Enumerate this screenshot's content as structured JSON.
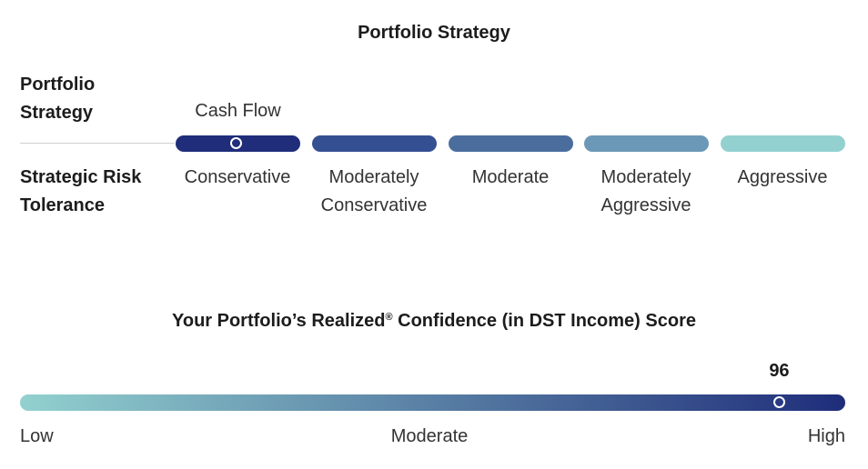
{
  "strategy_section": {
    "title": "Portfolio Strategy",
    "row_label_line1": "Portfolio",
    "row_label_line2": "Strategy",
    "selected_strategy": "Cash Flow",
    "risk_label_line1": "Strategic Risk",
    "risk_label_line2": "Tolerance",
    "segments": [
      {
        "line1": "Conservative",
        "line2": "",
        "color": "#1f2d7a"
      },
      {
        "line1": "Moderately",
        "line2": "Conservative",
        "color": "#354f93"
      },
      {
        "line1": "Moderate",
        "line2": "",
        "color": "#4a6d9e"
      },
      {
        "line1": "Moderately",
        "line2": "Aggressive",
        "color": "#6b98b6"
      },
      {
        "line1": "Aggressive",
        "line2": "",
        "color": "#92d1cf"
      }
    ],
    "selected_index": 0
  },
  "score_section": {
    "title_part1": "Your Portfolio’s Realized",
    "title_sup": "®",
    "title_part2": " Confidence (in DST Income) Score",
    "score": "96",
    "score_fraction": 0.92,
    "gradient_start": "#92d1cf",
    "gradient_end": "#1f2d7a",
    "scale_low": "Low",
    "scale_mid": "Moderate",
    "scale_high": "High"
  }
}
